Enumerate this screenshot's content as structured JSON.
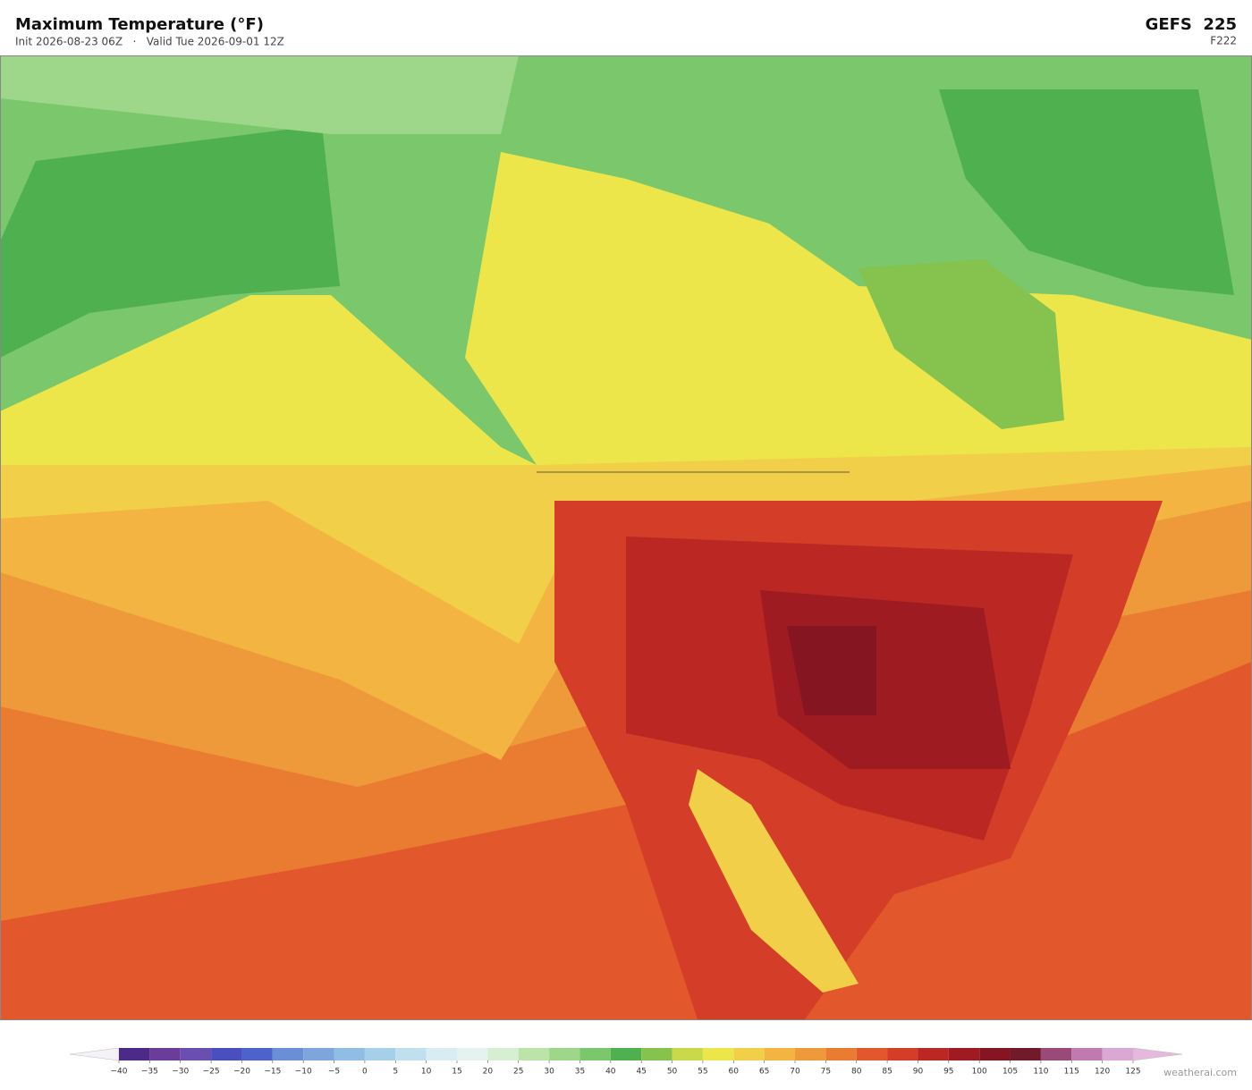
{
  "header": {
    "title": "Maximum Temperature  (°F)",
    "subtitle": "Init 2026-08-23 06Z   ·   Valid Tue 2026-09-01 12Z",
    "model": "GEFS  225",
    "forecast_hour": "F222"
  },
  "colorbar": {
    "ticks": [
      {
        "value": -40,
        "label": "−40"
      },
      {
        "value": -35,
        "label": "−35"
      },
      {
        "value": -30,
        "label": "−30"
      },
      {
        "value": -25,
        "label": "−25"
      },
      {
        "value": -20,
        "label": "−20"
      },
      {
        "value": -15,
        "label": "−15"
      },
      {
        "value": -10,
        "label": "−10"
      },
      {
        "value": -5,
        "label": "−5"
      },
      0,
      5,
      10,
      15,
      20,
      25,
      30,
      35,
      40,
      45,
      50,
      55,
      60,
      65,
      70,
      75,
      80,
      85,
      90,
      95,
      100,
      105,
      110,
      115,
      120,
      125
    ],
    "colors": [
      "#4b2a8a",
      "#6a3d9a",
      "#6b4fb0",
      "#4a4fc0",
      "#4d63cc",
      "#6a8fd6",
      "#7ea6dc",
      "#90bde4",
      "#a6d0ea",
      "#c0e0ef",
      "#d8ecf3",
      "#e4f3f0",
      "#d6eed2",
      "#bce3a8",
      "#9fd78a",
      "#7ac76c",
      "#4fb050",
      "#86c34e",
      "#c8d94a",
      "#ece64a",
      "#f2cf48",
      "#f3b442",
      "#ef9a3a",
      "#ea7c32",
      "#e2572b",
      "#d43d27",
      "#bb2723",
      "#9e1b22",
      "#851520",
      "#701a2a",
      "#9a4a78",
      "#c07ab0",
      "#d9a8d4"
    ],
    "under_color": "#f4f2f6",
    "over_color": "#e6b8de"
  },
  "footer": {
    "watermark": "weatherai.com"
  }
}
